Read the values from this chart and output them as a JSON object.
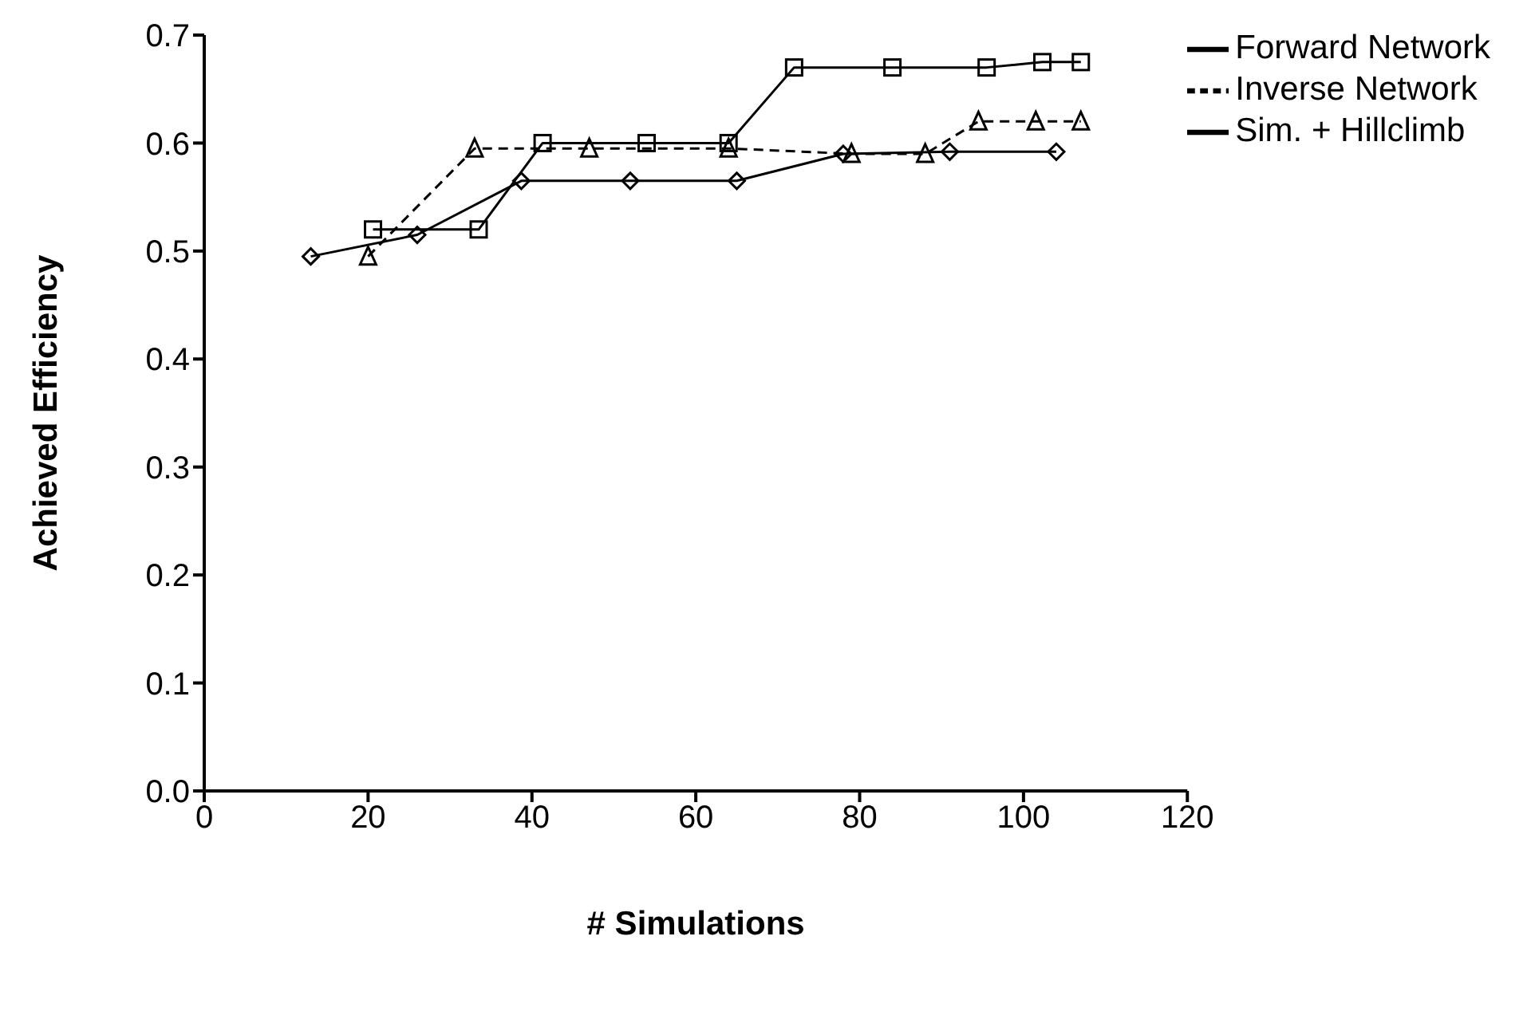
{
  "chart_data": {
    "type": "line",
    "xlabel": "# Simulations",
    "ylabel": "Achieved Efficiency",
    "xlim": [
      0,
      120
    ],
    "xticks": [
      0,
      20,
      40,
      60,
      80,
      100,
      120
    ],
    "ylim": [
      0,
      0.7
    ],
    "yticks": [
      {
        "value": 0,
        "label": "0.0"
      },
      {
        "value": 0.1,
        "label": "0.1"
      },
      {
        "value": 0.2,
        "label": "0.2"
      },
      {
        "value": 0.3,
        "label": "0.3"
      },
      {
        "value": 0.4,
        "label": "0.4"
      },
      {
        "value": 0.5,
        "label": "0.5"
      },
      {
        "value": 0.6,
        "label": "0.6"
      },
      {
        "value": 0.7,
        "label": "0.7"
      }
    ],
    "grid": false,
    "legend": "top right",
    "series": [
      {
        "name": "Forward Network",
        "color": "#000000",
        "marker": "square",
        "line_style": "solid",
        "x": [
          20.6,
          33.5,
          41.3,
          54,
          64,
          72,
          84,
          95.5,
          102.3,
          107
        ],
        "values": [
          0.52,
          0.52,
          0.6,
          0.6,
          0.6,
          0.67,
          0.67,
          0.67,
          0.675,
          0.675
        ]
      },
      {
        "name": "Inverse Network",
        "color": "#000000",
        "marker": "triangle",
        "line_style": "dashed",
        "x": [
          20,
          33,
          47,
          64,
          79,
          88,
          94.5,
          101.5,
          107
        ],
        "values": [
          0.495,
          0.595,
          0.595,
          0.595,
          0.59,
          0.59,
          0.62,
          0.62,
          0.62
        ]
      },
      {
        "name": "Sim. + Hillclimb",
        "color": "#000000",
        "marker": "diamond",
        "line_style": "solid",
        "x": [
          13,
          26,
          38.7,
          52,
          65,
          78,
          91,
          104
        ],
        "values": [
          0.495,
          0.515,
          0.565,
          0.565,
          0.565,
          0.59,
          0.592,
          0.592
        ]
      }
    ]
  }
}
